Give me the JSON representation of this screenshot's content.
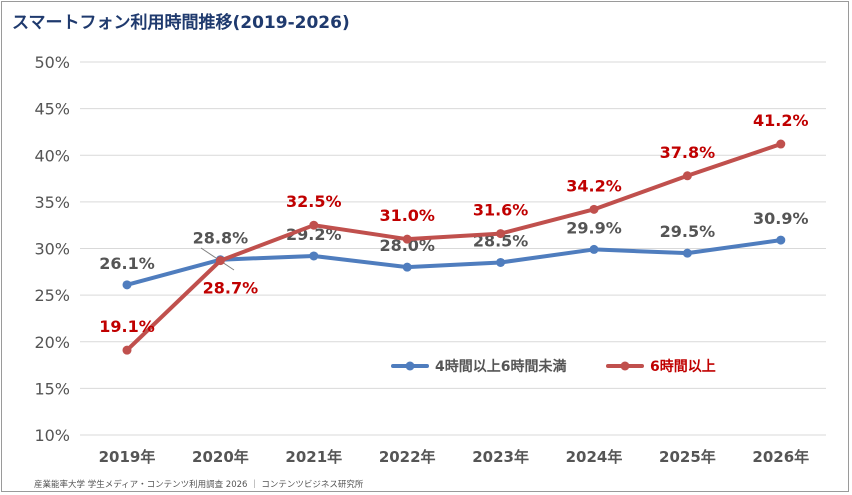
{
  "title": "スマートフォン利用時間推移(2019-2026)",
  "source": "産業能率大学 学生メディア・コンテンツ利用調査 2026 ｜ コンテンツビジネス研究所",
  "chart_data": {
    "type": "line",
    "title": "スマートフォン利用時間推移(2019-2026)",
    "x": [
      "2019年",
      "2020年",
      "2021年",
      "2022年",
      "2023年",
      "2024年",
      "2025年",
      "2026年"
    ],
    "ylim": [
      10,
      50
    ],
    "yticks": [
      10,
      15,
      20,
      25,
      30,
      35,
      40,
      45,
      50
    ],
    "ytick_labels": [
      "10%",
      "15%",
      "20%",
      "25%",
      "30%",
      "35%",
      "40%",
      "45%",
      "50%"
    ],
    "grid": true,
    "legend_position": "lower-right",
    "series": [
      {
        "name": "4時間以上6時間未満",
        "color": "#4f7dbe",
        "label_color": "#555555",
        "values": [
          26.1,
          28.8,
          29.2,
          28.0,
          28.5,
          29.9,
          29.5,
          30.9
        ],
        "labels": [
          "26.1%",
          "28.8%",
          "29.2%",
          "28.0%",
          "28.5%",
          "29.9%",
          "29.5%",
          "30.9%"
        ]
      },
      {
        "name": "6時間以上",
        "color": "#c0504d",
        "label_color": "#c00000",
        "values": [
          19.1,
          28.7,
          32.5,
          31.0,
          31.6,
          34.2,
          37.8,
          41.2
        ],
        "labels": [
          "19.1%",
          "28.7%",
          "32.5%",
          "31.0%",
          "31.6%",
          "34.2%",
          "37.8%",
          "41.2%"
        ]
      }
    ]
  }
}
